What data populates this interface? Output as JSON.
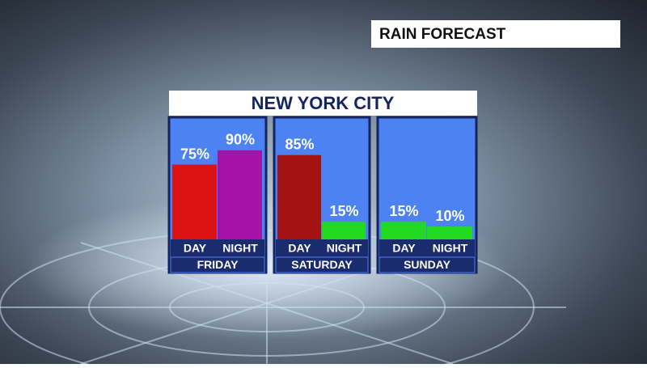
{
  "chart_data": {
    "type": "bar",
    "banner": "RAIN FORECAST",
    "title": "NEW YORK CITY",
    "panels": [
      {
        "name": "FRIDAY",
        "categories": [
          "DAY",
          "NIGHT"
        ],
        "values": [
          75,
          90
        ],
        "value_labels": [
          "75%",
          "90%"
        ],
        "colors": [
          "#dd1212",
          "#a412a8"
        ]
      },
      {
        "name": "SATURDAY",
        "categories": [
          "DAY",
          "NIGHT"
        ],
        "values": [
          85,
          15
        ],
        "value_labels": [
          "85%",
          "15%"
        ],
        "colors": [
          "#a51212",
          "#22d922"
        ]
      },
      {
        "name": "SUNDAY",
        "categories": [
          "DAY",
          "NIGHT"
        ],
        "values": [
          15,
          10
        ],
        "value_labels": [
          "15%",
          "10%"
        ],
        "colors": [
          "#22d922",
          "#22d922"
        ]
      }
    ]
  }
}
